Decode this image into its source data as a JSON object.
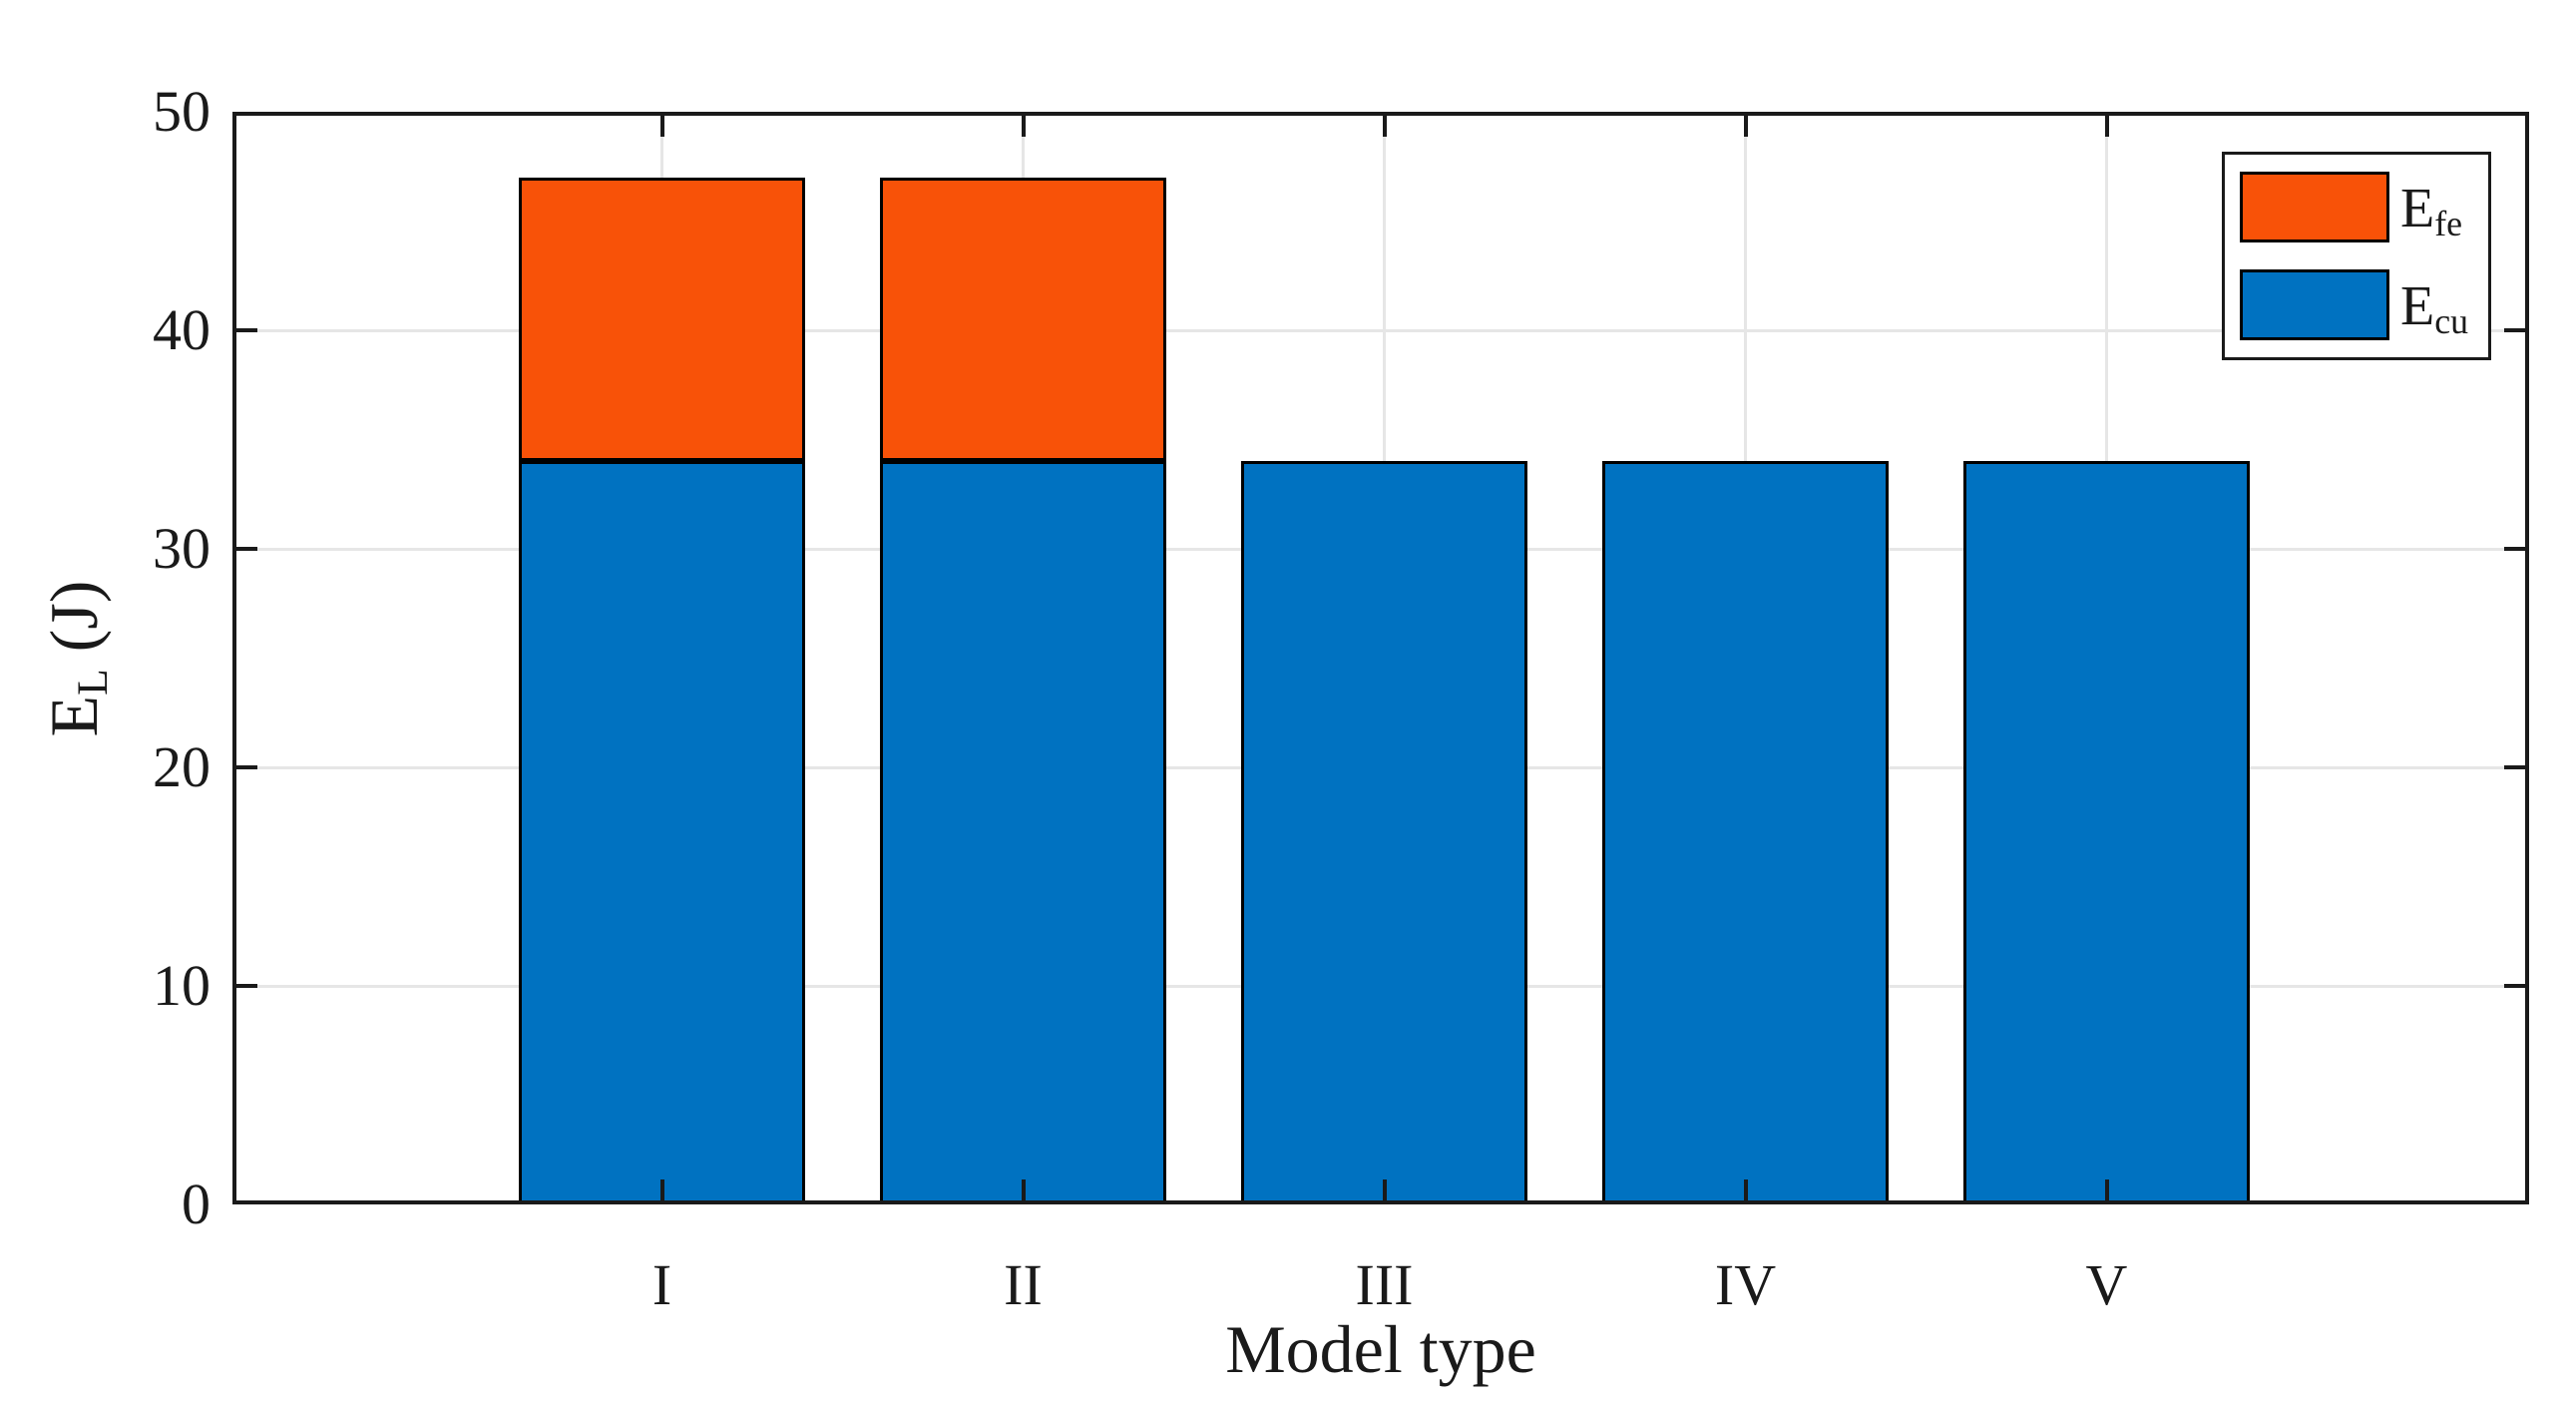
{
  "figure": {
    "background": "#FFFFFF",
    "axis_color": "#1A1A1A",
    "grid_color": "#E6E6E6"
  },
  "axes": {
    "xlabel": "Model type",
    "ylabel_main": "E",
    "ylabel_sub": "L",
    "ylabel_rest": " (J)",
    "ytick_labels": [
      "0",
      "10",
      "20",
      "30",
      "40",
      "50"
    ]
  },
  "legend": {
    "entries": [
      {
        "main": "E",
        "sub": "fe",
        "color": "#F85208"
      },
      {
        "main": "E",
        "sub": "cu",
        "color": "#0072C1"
      }
    ]
  },
  "chart_data": {
    "type": "bar",
    "stacked": true,
    "categories": [
      "I",
      "II",
      "III",
      "IV",
      "V"
    ],
    "series": [
      {
        "name": "E_fe",
        "color": "#F85208",
        "values": [
          13,
          13,
          0,
          0,
          0
        ]
      },
      {
        "name": "E_cu",
        "color": "#0072C1",
        "values": [
          34,
          34,
          34,
          34,
          34
        ]
      }
    ],
    "totals": [
      47,
      47,
      34,
      34,
      34
    ],
    "title": "",
    "xlabel": "Model type",
    "ylabel": "E_L (J)",
    "ylim": [
      0,
      50
    ],
    "yticks": [
      0,
      10,
      20,
      30,
      40,
      50
    ],
    "grid": true,
    "legend_position": "top-right"
  }
}
